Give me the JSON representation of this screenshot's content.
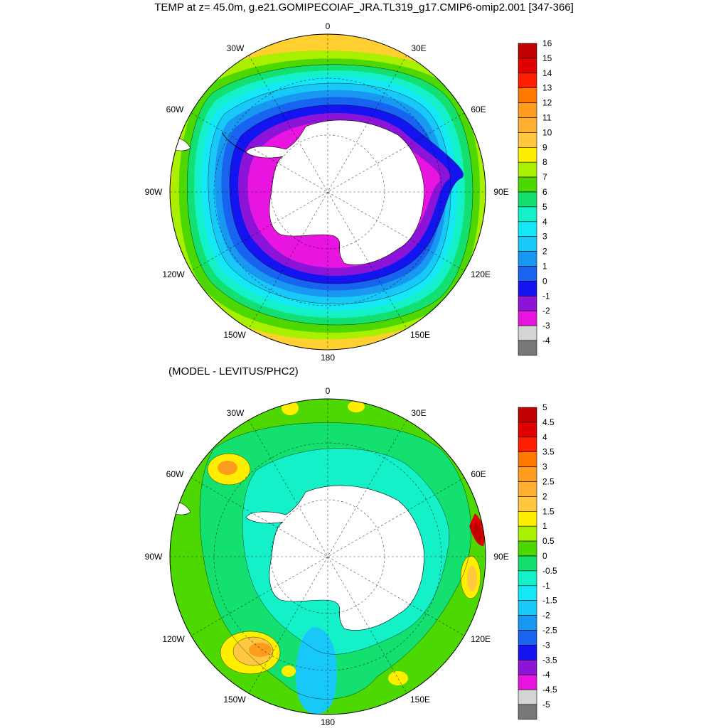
{
  "title": "TEMP at z=  45.0m, g.e21.GOMIPECOIAF_JRA.TL319_g17.CMIP6-omip2.001 [347-366]",
  "subtitle": "(MODEL - LEVITUS/PHC2)",
  "lon_labels": {
    "top": "0",
    "top_left": "30W",
    "top_right": "30E",
    "upper_left": "60W",
    "upper_right": "60E",
    "left": "90W",
    "right": "90E",
    "lower_left": "120W",
    "lower_right": "120E",
    "bottom_left": "150W",
    "bottom_right": "150E",
    "bottom": "180"
  },
  "colorbar_top": {
    "labels": [
      "16",
      "15",
      "14",
      "13",
      "12",
      "11",
      "10",
      "9",
      "8",
      "7",
      "6",
      "5",
      "4",
      "3",
      "2",
      "1",
      "0",
      "-1",
      "-2",
      "-3",
      "-4"
    ],
    "colors": [
      "#c00000",
      "#e00000",
      "#ff1e00",
      "#ff7800",
      "#ff9c20",
      "#ffb030",
      "#ffc840",
      "#ffee00",
      "#a8f000",
      "#4cd800",
      "#14e070",
      "#14f0c8",
      "#14e8f4",
      "#18c8f8",
      "#1898f0",
      "#1864f0",
      "#1414f0",
      "#8c14d8",
      "#e814e0",
      "#d4d4d4",
      "#787878"
    ]
  },
  "colorbar_bottom": {
    "labels": [
      "5",
      "4.5",
      "4",
      "3.5",
      "3",
      "2.5",
      "2",
      "1.5",
      "1",
      "0.5",
      "0",
      "-0.5",
      "-1",
      "-1.5",
      "-2",
      "-2.5",
      "-3",
      "-3.5",
      "-4",
      "-4.5",
      "-5"
    ],
    "colors": [
      "#c00000",
      "#e00000",
      "#ff1e00",
      "#ff7800",
      "#ff9c20",
      "#ffb030",
      "#ffc840",
      "#ffee00",
      "#a8f000",
      "#4cd800",
      "#14e070",
      "#14f0c8",
      "#14e8f4",
      "#18c8f8",
      "#1898f0",
      "#1864f0",
      "#1414f0",
      "#8c14d8",
      "#e814e0",
      "#d4d4d4",
      "#787878"
    ]
  },
  "fields": {
    "top": {
      "field": "TEMP",
      "units_range": [
        -4,
        16
      ]
    },
    "bottom": {
      "field": "MODEL - LEVITUS/PHC2",
      "units_range": [
        -5,
        5
      ]
    }
  }
}
